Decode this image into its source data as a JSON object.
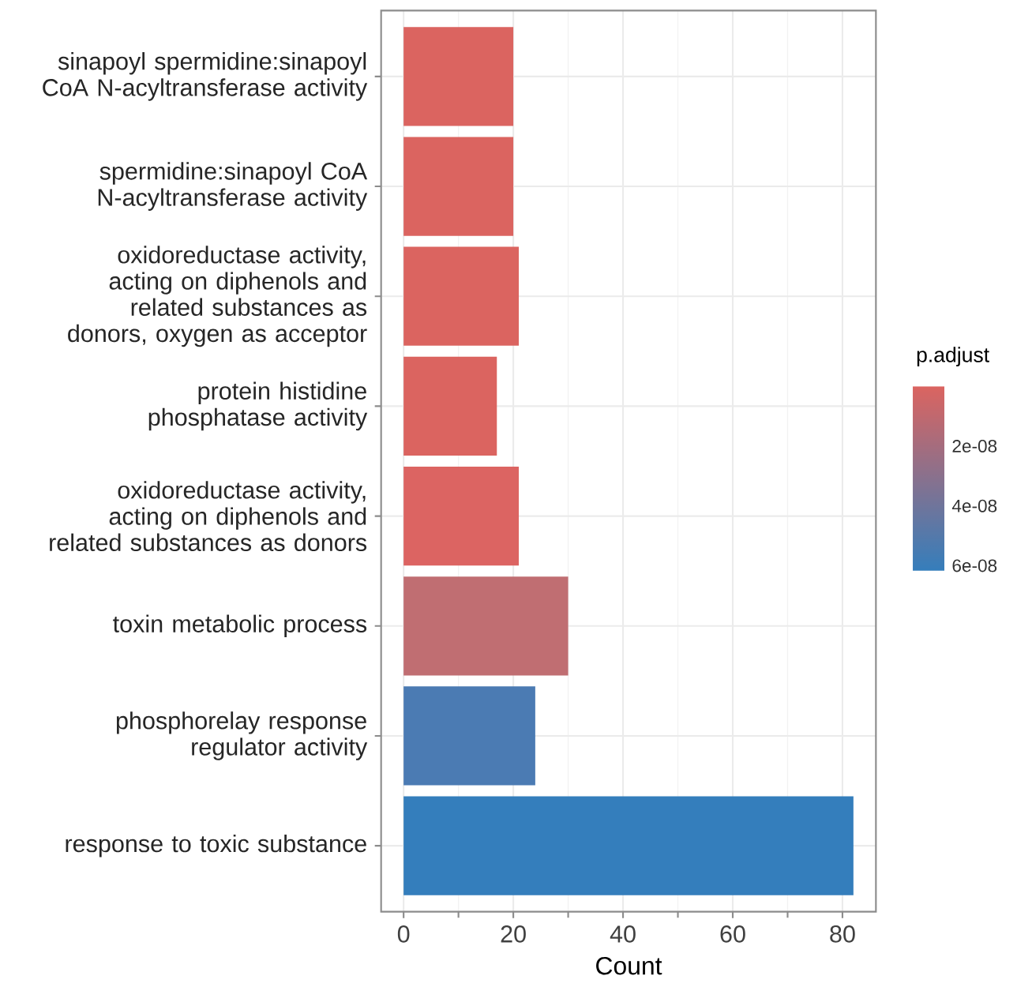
{
  "chart_data": {
    "type": "bar",
    "orientation": "horizontal",
    "categories": [
      "sinapoyl spermidine:sinapoyl CoA N-acyltransferase activity",
      "spermidine:sinapoyl CoA N-acyltransferase activity",
      "oxidoreductase activity, acting on diphenols and related substances as donors, oxygen as acceptor",
      "protein histidine phosphatase activity",
      "oxidoreductase activity, acting on diphenols and related substances as donors",
      "toxin metabolic process",
      "phosphorelay response regulator activity",
      "response to toxic substance"
    ],
    "values": [
      20,
      20,
      21,
      17,
      21,
      30,
      24,
      82
    ],
    "colors": [
      "#db6460",
      "#db6460",
      "#db6460",
      "#db6460",
      "#dc6462",
      "#c06e72",
      "#4b7bb3",
      "#347ebc"
    ],
    "xlabel": "Count",
    "xlim": [
      -4.1,
      86.1
    ],
    "xticks": [
      0,
      20,
      40,
      60,
      80
    ],
    "grid": true,
    "clabel": "p.adjust",
    "clim": [
      0,
      6.2e-08
    ],
    "cticks": [
      {
        "value": 2e-08,
        "label": "2e-08"
      },
      {
        "value": 4e-08,
        "label": "4e-08"
      },
      {
        "value": 6e-08,
        "label": "6e-08"
      }
    ]
  }
}
